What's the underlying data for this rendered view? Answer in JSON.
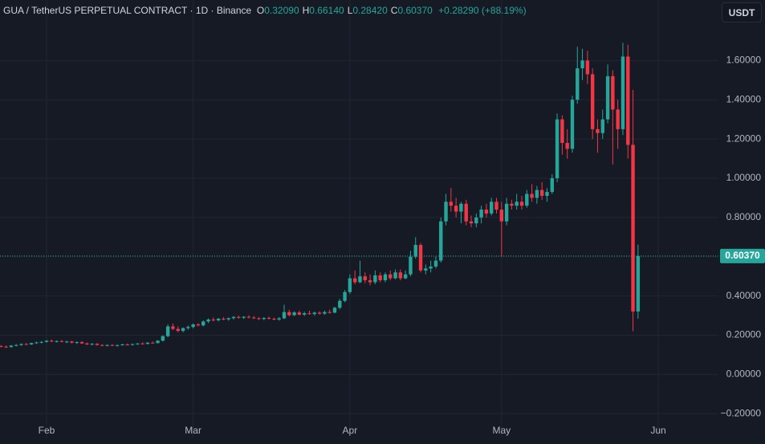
{
  "chart_data": {
    "type": "candlestick",
    "header": {
      "symbol": "GUA / TetherUS PERPETUAL CONTRACT · 1D · Binance",
      "legend": [
        [
          "O",
          "0.32090"
        ],
        [
          "H",
          "0.66140"
        ],
        [
          "L",
          "0.28420"
        ],
        [
          "C",
          "0.60370"
        ]
      ],
      "change": "+0.28290 (+88.19%)"
    },
    "currency_button": "USDT",
    "last_price_label": "0.60370",
    "up_color": "#26a69a",
    "down_color": "#f23645",
    "grid": true,
    "ylim": [
      -0.32,
      1.9
    ],
    "yticks": [
      {
        "value": 1.6,
        "label": "1.60000"
      },
      {
        "value": 1.4,
        "label": "1.40000"
      },
      {
        "value": 1.2,
        "label": "1.20000"
      },
      {
        "value": 1,
        "label": "1.00000"
      },
      {
        "value": 0.8,
        "label": "0.80000"
      },
      {
        "value": 0.6,
        "label": "0.60000"
      },
      {
        "value": 0.4,
        "label": "0.40000"
      },
      {
        "value": 0.2,
        "label": "0.20000"
      },
      {
        "value": 0,
        "label": "0.00000"
      },
      {
        "value": -0.2,
        "label": "−0.20000"
      }
    ],
    "categories": [
      null,
      null,
      null,
      null,
      null,
      null,
      null,
      null,
      null,
      "Feb",
      null,
      null,
      null,
      null,
      null,
      null,
      null,
      null,
      null,
      null,
      null,
      null,
      null,
      null,
      null,
      null,
      null,
      null,
      null,
      null,
      null,
      null,
      null,
      null,
      null,
      null,
      null,
      null,
      "Mar",
      null,
      null,
      null,
      null,
      null,
      null,
      null,
      null,
      null,
      null,
      null,
      null,
      null,
      null,
      null,
      null,
      null,
      null,
      null,
      null,
      null,
      null,
      null,
      null,
      null,
      null,
      null,
      null,
      null,
      null,
      "Apr",
      null,
      null,
      null,
      null,
      null,
      null,
      null,
      null,
      null,
      null,
      null,
      null,
      null,
      null,
      null,
      null,
      null,
      null,
      null,
      null,
      null,
      null,
      null,
      null,
      null,
      null,
      null,
      null,
      null,
      "May",
      null,
      null,
      null,
      null,
      null,
      null,
      null,
      null,
      null,
      null,
      null,
      null,
      null,
      null,
      null,
      null,
      null,
      null,
      null,
      null,
      null,
      null,
      null,
      null,
      null,
      null,
      null,
      null,
      null,
      null,
      "Jun"
    ],
    "candles": [
      [
        0.145,
        0.15,
        0.138,
        0.142
      ],
      [
        0.142,
        0.148,
        0.135,
        0.14
      ],
      [
        0.14,
        0.15,
        0.136,
        0.147
      ],
      [
        0.147,
        0.155,
        0.143,
        0.15
      ],
      [
        0.15,
        0.158,
        0.146,
        0.155
      ],
      [
        0.155,
        0.16,
        0.15,
        0.153
      ],
      [
        0.153,
        0.162,
        0.15,
        0.16
      ],
      [
        0.16,
        0.168,
        0.156,
        0.163
      ],
      [
        0.163,
        0.17,
        0.158,
        0.166
      ],
      [
        0.166,
        0.175,
        0.162,
        0.172
      ],
      [
        0.172,
        0.178,
        0.165,
        0.168
      ],
      [
        0.168,
        0.174,
        0.163,
        0.17
      ],
      [
        0.17,
        0.176,
        0.164,
        0.166
      ],
      [
        0.166,
        0.172,
        0.16,
        0.168
      ],
      [
        0.168,
        0.172,
        0.158,
        0.162
      ],
      [
        0.162,
        0.168,
        0.155,
        0.165
      ],
      [
        0.165,
        0.17,
        0.156,
        0.158
      ],
      [
        0.158,
        0.163,
        0.15,
        0.153
      ],
      [
        0.153,
        0.16,
        0.148,
        0.156
      ],
      [
        0.156,
        0.16,
        0.147,
        0.15
      ],
      [
        0.15,
        0.155,
        0.144,
        0.148
      ],
      [
        0.148,
        0.153,
        0.143,
        0.15
      ],
      [
        0.15,
        0.154,
        0.145,
        0.147
      ],
      [
        0.147,
        0.152,
        0.142,
        0.15
      ],
      [
        0.15,
        0.156,
        0.146,
        0.153
      ],
      [
        0.153,
        0.158,
        0.148,
        0.151
      ],
      [
        0.151,
        0.157,
        0.147,
        0.155
      ],
      [
        0.155,
        0.16,
        0.15,
        0.158
      ],
      [
        0.158,
        0.163,
        0.152,
        0.156
      ],
      [
        0.156,
        0.165,
        0.153,
        0.162
      ],
      [
        0.162,
        0.168,
        0.157,
        0.16
      ],
      [
        0.16,
        0.175,
        0.158,
        0.172
      ],
      [
        0.172,
        0.2,
        0.168,
        0.195
      ],
      [
        0.195,
        0.255,
        0.19,
        0.245
      ],
      [
        0.245,
        0.26,
        0.225,
        0.232
      ],
      [
        0.232,
        0.245,
        0.215,
        0.222
      ],
      [
        0.222,
        0.24,
        0.215,
        0.236
      ],
      [
        0.236,
        0.25,
        0.228,
        0.242
      ],
      [
        0.242,
        0.26,
        0.235,
        0.255
      ],
      [
        0.255,
        0.262,
        0.245,
        0.25
      ],
      [
        0.25,
        0.275,
        0.245,
        0.27
      ],
      [
        0.27,
        0.285,
        0.262,
        0.28
      ],
      [
        0.28,
        0.29,
        0.27,
        0.276
      ],
      [
        0.276,
        0.288,
        0.27,
        0.284
      ],
      [
        0.284,
        0.292,
        0.276,
        0.281
      ],
      [
        0.281,
        0.29,
        0.274,
        0.287
      ],
      [
        0.287,
        0.298,
        0.28,
        0.293
      ],
      [
        0.293,
        0.3,
        0.284,
        0.289
      ],
      [
        0.289,
        0.297,
        0.283,
        0.294
      ],
      [
        0.294,
        0.302,
        0.286,
        0.29
      ],
      [
        0.29,
        0.298,
        0.283,
        0.286
      ],
      [
        0.286,
        0.293,
        0.278,
        0.283
      ],
      [
        0.283,
        0.292,
        0.276,
        0.288
      ],
      [
        0.288,
        0.295,
        0.28,
        0.284
      ],
      [
        0.284,
        0.29,
        0.276,
        0.28
      ],
      [
        0.28,
        0.292,
        0.274,
        0.286
      ],
      [
        0.286,
        0.355,
        0.282,
        0.318
      ],
      [
        0.318,
        0.33,
        0.296,
        0.302
      ],
      [
        0.302,
        0.322,
        0.298,
        0.316
      ],
      [
        0.316,
        0.325,
        0.3,
        0.305
      ],
      [
        0.305,
        0.32,
        0.298,
        0.312
      ],
      [
        0.312,
        0.325,
        0.304,
        0.308
      ],
      [
        0.308,
        0.32,
        0.3,
        0.315
      ],
      [
        0.315,
        0.322,
        0.305,
        0.31
      ],
      [
        0.31,
        0.325,
        0.304,
        0.318
      ],
      [
        0.318,
        0.33,
        0.31,
        0.315
      ],
      [
        0.315,
        0.345,
        0.312,
        0.34
      ],
      [
        0.34,
        0.385,
        0.332,
        0.375
      ],
      [
        0.375,
        0.43,
        0.368,
        0.42
      ],
      [
        0.42,
        0.51,
        0.41,
        0.49
      ],
      [
        0.49,
        0.53,
        0.46,
        0.47
      ],
      [
        0.47,
        0.58,
        0.465,
        0.5
      ],
      [
        0.5,
        0.52,
        0.465,
        0.48
      ],
      [
        0.48,
        0.51,
        0.455,
        0.47
      ],
      [
        0.47,
        0.53,
        0.46,
        0.505
      ],
      [
        0.505,
        0.52,
        0.47,
        0.48
      ],
      [
        0.48,
        0.52,
        0.47,
        0.51
      ],
      [
        0.51,
        0.53,
        0.48,
        0.49
      ],
      [
        0.49,
        0.535,
        0.485,
        0.52
      ],
      [
        0.52,
        0.535,
        0.48,
        0.49
      ],
      [
        0.49,
        0.53,
        0.485,
        0.51
      ],
      [
        0.51,
        0.63,
        0.5,
        0.6
      ],
      [
        0.6,
        0.7,
        0.59,
        0.66
      ],
      [
        0.66,
        0.67,
        0.52,
        0.53
      ],
      [
        0.53,
        0.56,
        0.51,
        0.54
      ],
      [
        0.54,
        0.58,
        0.52,
        0.55
      ],
      [
        0.55,
        0.6,
        0.54,
        0.58
      ],
      [
        0.58,
        0.8,
        0.57,
        0.78
      ],
      [
        0.78,
        0.92,
        0.76,
        0.88
      ],
      [
        0.88,
        0.95,
        0.83,
        0.86
      ],
      [
        0.86,
        0.9,
        0.8,
        0.83
      ],
      [
        0.83,
        0.88,
        0.77,
        0.87
      ],
      [
        0.87,
        0.89,
        0.76,
        0.78
      ],
      [
        0.78,
        0.81,
        0.75,
        0.77
      ],
      [
        0.77,
        0.82,
        0.75,
        0.8
      ],
      [
        0.8,
        0.86,
        0.77,
        0.84
      ],
      [
        0.84,
        0.87,
        0.8,
        0.82
      ],
      [
        0.82,
        0.9,
        0.81,
        0.88
      ],
      [
        0.88,
        0.9,
        0.82,
        0.84
      ],
      [
        0.84,
        0.88,
        0.6,
        0.78
      ],
      [
        0.78,
        0.9,
        0.76,
        0.87
      ],
      [
        0.87,
        0.89,
        0.84,
        0.86
      ],
      [
        0.86,
        0.92,
        0.84,
        0.88
      ],
      [
        0.88,
        0.91,
        0.84,
        0.86
      ],
      [
        0.86,
        0.94,
        0.85,
        0.92
      ],
      [
        0.92,
        0.97,
        0.88,
        0.9
      ],
      [
        0.9,
        0.96,
        0.87,
        0.94
      ],
      [
        0.94,
        0.98,
        0.89,
        0.91
      ],
      [
        0.91,
        0.95,
        0.88,
        0.93
      ],
      [
        0.93,
        1.02,
        0.92,
        1.0
      ],
      [
        1.0,
        1.33,
        0.98,
        1.3
      ],
      [
        1.3,
        1.32,
        1.12,
        1.18
      ],
      [
        1.18,
        1.25,
        1.1,
        1.15
      ],
      [
        1.15,
        1.42,
        1.13,
        1.4
      ],
      [
        1.4,
        1.67,
        1.38,
        1.56
      ],
      [
        1.56,
        1.66,
        1.5,
        1.6
      ],
      [
        1.6,
        1.65,
        1.48,
        1.53
      ],
      [
        1.53,
        1.56,
        1.2,
        1.25
      ],
      [
        1.25,
        1.3,
        1.13,
        1.23
      ],
      [
        1.23,
        1.35,
        1.2,
        1.3
      ],
      [
        1.3,
        1.58,
        1.28,
        1.52
      ],
      [
        1.52,
        1.55,
        1.07,
        1.35
      ],
      [
        1.35,
        1.4,
        1.15,
        1.25
      ],
      [
        1.25,
        1.69,
        1.22,
        1.62
      ],
      [
        1.62,
        1.68,
        1.1,
        1.17
      ],
      [
        1.17,
        1.45,
        0.22,
        0.3209
      ],
      [
        0.3209,
        0.6614,
        0.2842,
        0.6037
      ],
      null,
      null,
      null,
      null
    ]
  }
}
